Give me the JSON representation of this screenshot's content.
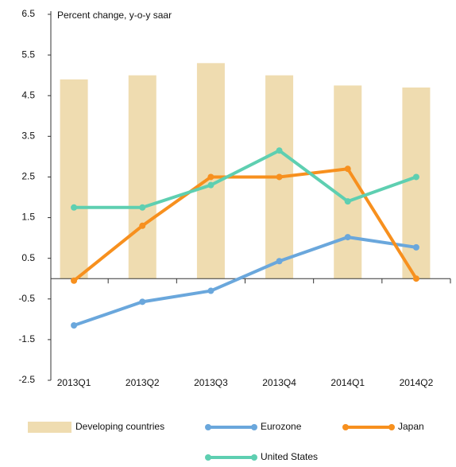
{
  "chart_data": {
    "type": "bar_line",
    "title": "Percent change, y-o-y saar",
    "categories": [
      "2013Q1",
      "2013Q2",
      "2013Q3",
      "2013Q4",
      "2014Q1",
      "2014Q2"
    ],
    "series": [
      {
        "name": "Developing countries",
        "type": "bar",
        "color": "#efdcb0",
        "values": [
          4.9,
          5.0,
          5.3,
          5.0,
          4.75,
          4.7
        ]
      },
      {
        "name": "Eurozone",
        "type": "line",
        "color": "#6aa7dc",
        "values": [
          -1.15,
          -0.57,
          -0.3,
          0.43,
          1.02,
          0.77
        ]
      },
      {
        "name": "Japan",
        "type": "line",
        "color": "#f7901e",
        "values": [
          -0.05,
          1.3,
          2.5,
          2.5,
          2.7,
          0.0
        ]
      },
      {
        "name": "United States",
        "type": "line",
        "color": "#5ecfb1",
        "values": [
          1.75,
          1.75,
          2.3,
          3.15,
          1.9,
          2.5
        ]
      }
    ],
    "ylim": [
      -2.5,
      6.5
    ],
    "yticks": [
      6.5,
      5.5,
      4.5,
      3.5,
      2.5,
      1.5,
      0.5,
      -0.5,
      -1.5,
      -2.5
    ]
  }
}
